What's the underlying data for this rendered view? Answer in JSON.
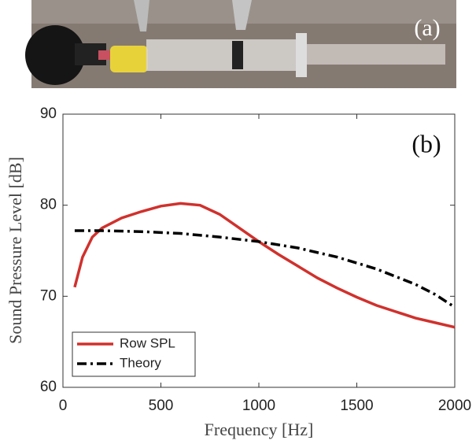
{
  "photo": {
    "label": "(a)"
  },
  "chart_data": {
    "type": "line",
    "panel_label": "(b)",
    "xlabel": "Frequency [Hz]",
    "ylabel": "Sound Pressure Level [dB]",
    "xlim": [
      0,
      2000
    ],
    "xticks": [
      0,
      500,
      1000,
      1500,
      2000
    ],
    "ylim": [
      60,
      90
    ],
    "yticks": [
      60,
      70,
      80,
      90
    ],
    "legend": "lower left",
    "series": [
      {
        "name": "Row SPL",
        "color": "#d0312d",
        "style": "solid",
        "x": [
          60,
          100,
          150,
          200,
          300,
          400,
          500,
          600,
          700,
          800,
          900,
          1000,
          1100,
          1200,
          1300,
          1400,
          1500,
          1600,
          1700,
          1800,
          1900,
          2000
        ],
        "values": [
          71.0,
          74.3,
          76.5,
          77.5,
          78.6,
          79.3,
          79.9,
          80.2,
          80.0,
          79.0,
          77.5,
          76.0,
          74.6,
          73.3,
          72.0,
          70.9,
          69.9,
          69.0,
          68.3,
          67.6,
          67.1,
          66.6
        ]
      },
      {
        "name": "Theory",
        "color": "#000000",
        "style": "dashdot",
        "x": [
          60,
          200,
          400,
          600,
          800,
          1000,
          1200,
          1400,
          1600,
          1800,
          1900,
          2000
        ],
        "values": [
          77.2,
          77.2,
          77.1,
          76.9,
          76.5,
          76.0,
          75.3,
          74.3,
          73.0,
          71.3,
          70.2,
          68.8
        ]
      }
    ]
  }
}
